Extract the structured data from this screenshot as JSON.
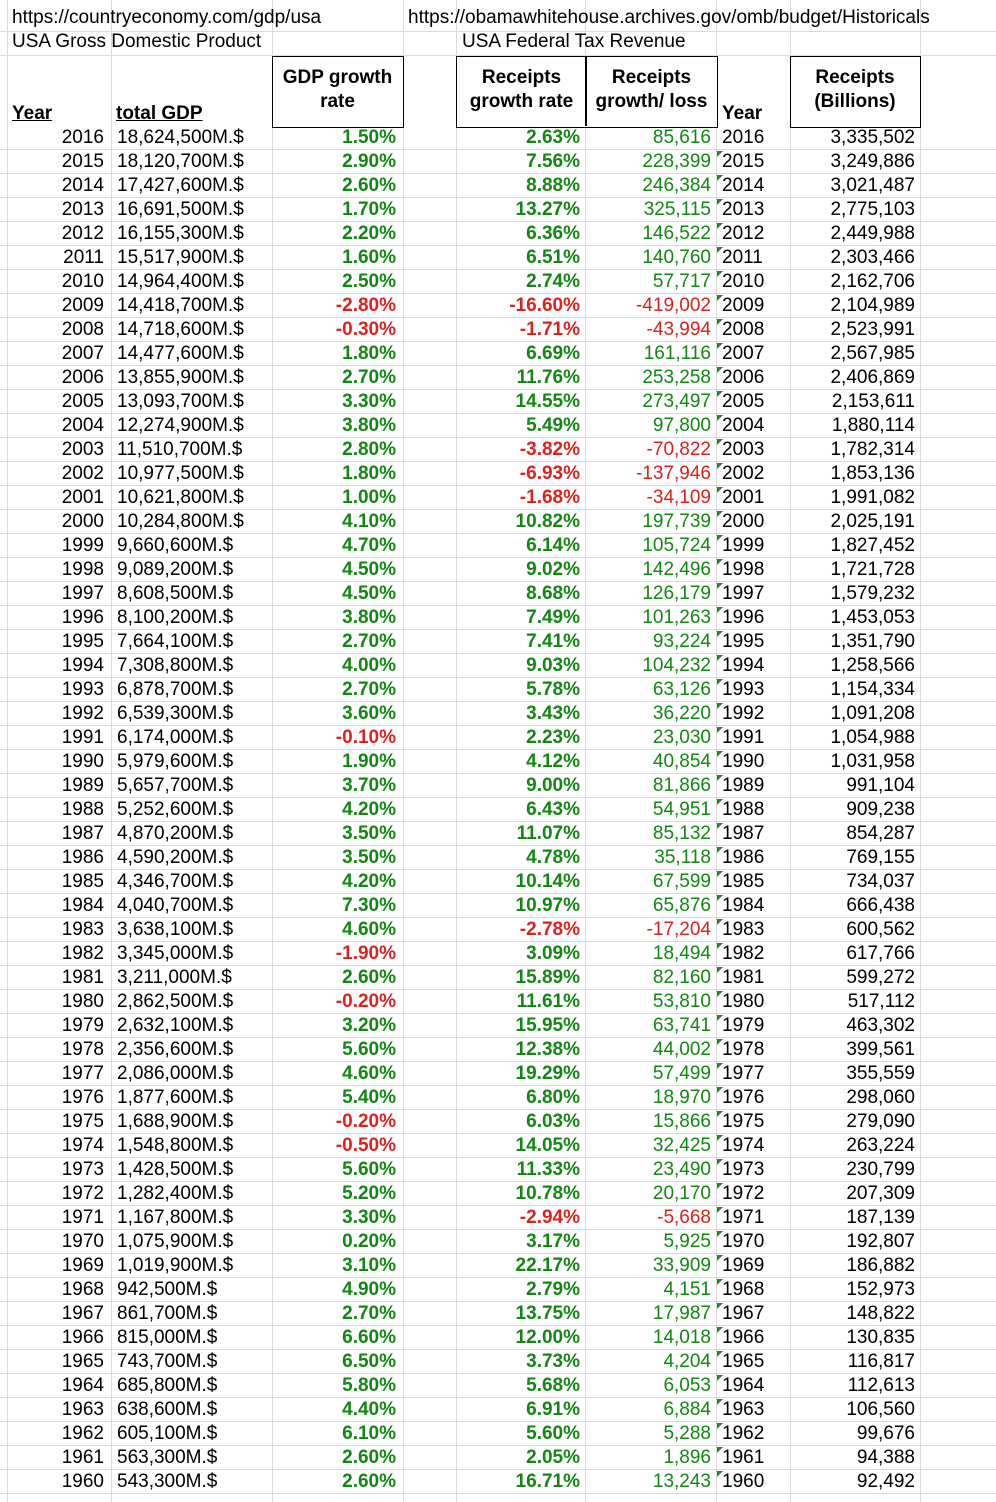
{
  "sources": {
    "gdp_url": "https://countryeconomy.com/gdp/usa",
    "gdp_title": "USA Gross Domestic Product",
    "tax_url": "https://obamawhitehouse.archives.gov/omb/budget/Historicals",
    "tax_title": "USA Federal Tax Revenue"
  },
  "headers": {
    "year": "Year",
    "total_gdp": "total GDP",
    "gdp_growth_1": "GDP growth",
    "gdp_growth_2": "rate",
    "receipts_growth_1": "Receipts",
    "receipts_growth_2": "growth rate",
    "receipts_gl_1": "Receipts",
    "receipts_gl_2": "growth/ loss",
    "year2": "Year",
    "receipts_1": "Receipts",
    "receipts_2": "(Billions)"
  },
  "colors": {
    "positive": "#118811",
    "negative": "#e0201a",
    "gridline": "#dadada",
    "flag": "#1f8a1f"
  },
  "rows": [
    {
      "year": "2016",
      "gdp": "18,624,500M.$",
      "gdp_growth": "1.50%",
      "receipts_growth": "2.63%",
      "receipts_change": "85,616",
      "year2": "2016",
      "receipts": "3,335,502",
      "gdp_neg": false,
      "rec_neg": false,
      "flag": false
    },
    {
      "year": "2015",
      "gdp": "18,120,700M.$",
      "gdp_growth": "2.90%",
      "receipts_growth": "7.56%",
      "receipts_change": "228,399",
      "year2": "2015",
      "receipts": "3,249,886",
      "gdp_neg": false,
      "rec_neg": false,
      "flag": true
    },
    {
      "year": "2014",
      "gdp": "17,427,600M.$",
      "gdp_growth": "2.60%",
      "receipts_growth": "8.88%",
      "receipts_change": "246,384",
      "year2": "2014",
      "receipts": "3,021,487",
      "gdp_neg": false,
      "rec_neg": false,
      "flag": true
    },
    {
      "year": "2013",
      "gdp": "16,691,500M.$",
      "gdp_growth": "1.70%",
      "receipts_growth": "13.27%",
      "receipts_change": "325,115",
      "year2": "2013",
      "receipts": "2,775,103",
      "gdp_neg": false,
      "rec_neg": false,
      "flag": true
    },
    {
      "year": "2012",
      "gdp": "16,155,300M.$",
      "gdp_growth": "2.20%",
      "receipts_growth": "6.36%",
      "receipts_change": "146,522",
      "year2": "2012",
      "receipts": "2,449,988",
      "gdp_neg": false,
      "rec_neg": false,
      "flag": true
    },
    {
      "year": "2011",
      "gdp": "15,517,900M.$",
      "gdp_growth": "1.60%",
      "receipts_growth": "6.51%",
      "receipts_change": "140,760",
      "year2": "2011",
      "receipts": "2,303,466",
      "gdp_neg": false,
      "rec_neg": false,
      "flag": true
    },
    {
      "year": "2010",
      "gdp": "14,964,400M.$",
      "gdp_growth": "2.50%",
      "receipts_growth": "2.74%",
      "receipts_change": "57,717",
      "year2": "2010",
      "receipts": "2,162,706",
      "gdp_neg": false,
      "rec_neg": false,
      "flag": true
    },
    {
      "year": "2009",
      "gdp": "14,418,700M.$",
      "gdp_growth": "-2.80%",
      "receipts_growth": "-16.60%",
      "receipts_change": "-419,002",
      "year2": "2009",
      "receipts": "2,104,989",
      "gdp_neg": true,
      "rec_neg": true,
      "flag": true
    },
    {
      "year": "2008",
      "gdp": "14,718,600M.$",
      "gdp_growth": "-0.30%",
      "receipts_growth": "-1.71%",
      "receipts_change": "-43,994",
      "year2": "2008",
      "receipts": "2,523,991",
      "gdp_neg": true,
      "rec_neg": true,
      "flag": true
    },
    {
      "year": "2007",
      "gdp": "14,477,600M.$",
      "gdp_growth": "1.80%",
      "receipts_growth": "6.69%",
      "receipts_change": "161,116",
      "year2": "2007",
      "receipts": "2,567,985",
      "gdp_neg": false,
      "rec_neg": false,
      "flag": true
    },
    {
      "year": "2006",
      "gdp": "13,855,900M.$",
      "gdp_growth": "2.70%",
      "receipts_growth": "11.76%",
      "receipts_change": "253,258",
      "year2": "2006",
      "receipts": "2,406,869",
      "gdp_neg": false,
      "rec_neg": false,
      "flag": true
    },
    {
      "year": "2005",
      "gdp": "13,093,700M.$",
      "gdp_growth": "3.30%",
      "receipts_growth": "14.55%",
      "receipts_change": "273,497",
      "year2": "2005",
      "receipts": "2,153,611",
      "gdp_neg": false,
      "rec_neg": false,
      "flag": true
    },
    {
      "year": "2004",
      "gdp": "12,274,900M.$",
      "gdp_growth": "3.80%",
      "receipts_growth": "5.49%",
      "receipts_change": "97,800",
      "year2": "2004",
      "receipts": "1,880,114",
      "gdp_neg": false,
      "rec_neg": false,
      "flag": true
    },
    {
      "year": "2003",
      "gdp": "11,510,700M.$",
      "gdp_growth": "2.80%",
      "receipts_growth": "-3.82%",
      "receipts_change": "-70,822",
      "year2": "2003",
      "receipts": "1,782,314",
      "gdp_neg": false,
      "rec_neg": true,
      "flag": true
    },
    {
      "year": "2002",
      "gdp": "10,977,500M.$",
      "gdp_growth": "1.80%",
      "receipts_growth": "-6.93%",
      "receipts_change": "-137,946",
      "year2": "2002",
      "receipts": "1,853,136",
      "gdp_neg": false,
      "rec_neg": true,
      "flag": true
    },
    {
      "year": "2001",
      "gdp": "10,621,800M.$",
      "gdp_growth": "1.00%",
      "receipts_growth": "-1.68%",
      "receipts_change": "-34,109",
      "year2": "2001",
      "receipts": "1,991,082",
      "gdp_neg": false,
      "rec_neg": true,
      "flag": true
    },
    {
      "year": "2000",
      "gdp": "10,284,800M.$",
      "gdp_growth": "4.10%",
      "receipts_growth": "10.82%",
      "receipts_change": "197,739",
      "year2": "2000",
      "receipts": "2,025,191",
      "gdp_neg": false,
      "rec_neg": false,
      "flag": true
    },
    {
      "year": "1999",
      "gdp": "9,660,600M.$",
      "gdp_growth": "4.70%",
      "receipts_growth": "6.14%",
      "receipts_change": "105,724",
      "year2": "1999",
      "receipts": "1,827,452",
      "gdp_neg": false,
      "rec_neg": false,
      "flag": true
    },
    {
      "year": "1998",
      "gdp": "9,089,200M.$",
      "gdp_growth": "4.50%",
      "receipts_growth": "9.02%",
      "receipts_change": "142,496",
      "year2": "1998",
      "receipts": "1,721,728",
      "gdp_neg": false,
      "rec_neg": false,
      "flag": true
    },
    {
      "year": "1997",
      "gdp": "8,608,500M.$",
      "gdp_growth": "4.50%",
      "receipts_growth": "8.68%",
      "receipts_change": "126,179",
      "year2": "1997",
      "receipts": "1,579,232",
      "gdp_neg": false,
      "rec_neg": false,
      "flag": true
    },
    {
      "year": "1996",
      "gdp": "8,100,200M.$",
      "gdp_growth": "3.80%",
      "receipts_growth": "7.49%",
      "receipts_change": "101,263",
      "year2": "1996",
      "receipts": "1,453,053",
      "gdp_neg": false,
      "rec_neg": false,
      "flag": true
    },
    {
      "year": "1995",
      "gdp": "7,664,100M.$",
      "gdp_growth": "2.70%",
      "receipts_growth": "7.41%",
      "receipts_change": "93,224",
      "year2": "1995",
      "receipts": "1,351,790",
      "gdp_neg": false,
      "rec_neg": false,
      "flag": true
    },
    {
      "year": "1994",
      "gdp": "7,308,800M.$",
      "gdp_growth": "4.00%",
      "receipts_growth": "9.03%",
      "receipts_change": "104,232",
      "year2": "1994",
      "receipts": "1,258,566",
      "gdp_neg": false,
      "rec_neg": false,
      "flag": true
    },
    {
      "year": "1993",
      "gdp": "6,878,700M.$",
      "gdp_growth": "2.70%",
      "receipts_growth": "5.78%",
      "receipts_change": "63,126",
      "year2": "1993",
      "receipts": "1,154,334",
      "gdp_neg": false,
      "rec_neg": false,
      "flag": true
    },
    {
      "year": "1992",
      "gdp": "6,539,300M.$",
      "gdp_growth": "3.60%",
      "receipts_growth": "3.43%",
      "receipts_change": "36,220",
      "year2": "1992",
      "receipts": "1,091,208",
      "gdp_neg": false,
      "rec_neg": false,
      "flag": true
    },
    {
      "year": "1991",
      "gdp": "6,174,000M.$",
      "gdp_growth": "-0.10%",
      "receipts_growth": "2.23%",
      "receipts_change": "23,030",
      "year2": "1991",
      "receipts": "1,054,988",
      "gdp_neg": true,
      "rec_neg": false,
      "flag": true
    },
    {
      "year": "1990",
      "gdp": "5,979,600M.$",
      "gdp_growth": "1.90%",
      "receipts_growth": "4.12%",
      "receipts_change": "40,854",
      "year2": "1990",
      "receipts": "1,031,958",
      "gdp_neg": false,
      "rec_neg": false,
      "flag": true
    },
    {
      "year": "1989",
      "gdp": "5,657,700M.$",
      "gdp_growth": "3.70%",
      "receipts_growth": "9.00%",
      "receipts_change": "81,866",
      "year2": "1989",
      "receipts": "991,104",
      "gdp_neg": false,
      "rec_neg": false,
      "flag": true
    },
    {
      "year": "1988",
      "gdp": "5,252,600M.$",
      "gdp_growth": "4.20%",
      "receipts_growth": "6.43%",
      "receipts_change": "54,951",
      "year2": "1988",
      "receipts": "909,238",
      "gdp_neg": false,
      "rec_neg": false,
      "flag": true
    },
    {
      "year": "1987",
      "gdp": "4,870,200M.$",
      "gdp_growth": "3.50%",
      "receipts_growth": "11.07%",
      "receipts_change": "85,132",
      "year2": "1987",
      "receipts": "854,287",
      "gdp_neg": false,
      "rec_neg": false,
      "flag": true
    },
    {
      "year": "1986",
      "gdp": "4,590,200M.$",
      "gdp_growth": "3.50%",
      "receipts_growth": "4.78%",
      "receipts_change": "35,118",
      "year2": "1986",
      "receipts": "769,155",
      "gdp_neg": false,
      "rec_neg": false,
      "flag": true
    },
    {
      "year": "1985",
      "gdp": "4,346,700M.$",
      "gdp_growth": "4.20%",
      "receipts_growth": "10.14%",
      "receipts_change": "67,599",
      "year2": "1985",
      "receipts": "734,037",
      "gdp_neg": false,
      "rec_neg": false,
      "flag": true
    },
    {
      "year": "1984",
      "gdp": "4,040,700M.$",
      "gdp_growth": "7.30%",
      "receipts_growth": "10.97%",
      "receipts_change": "65,876",
      "year2": "1984",
      "receipts": "666,438",
      "gdp_neg": false,
      "rec_neg": false,
      "flag": true
    },
    {
      "year": "1983",
      "gdp": "3,638,100M.$",
      "gdp_growth": "4.60%",
      "receipts_growth": "-2.78%",
      "receipts_change": "-17,204",
      "year2": "1983",
      "receipts": "600,562",
      "gdp_neg": false,
      "rec_neg": true,
      "flag": true
    },
    {
      "year": "1982",
      "gdp": "3,345,000M.$",
      "gdp_growth": "-1.90%",
      "receipts_growth": "3.09%",
      "receipts_change": "18,494",
      "year2": "1982",
      "receipts": "617,766",
      "gdp_neg": true,
      "rec_neg": false,
      "flag": true
    },
    {
      "year": "1981",
      "gdp": "3,211,000M.$",
      "gdp_growth": "2.60%",
      "receipts_growth": "15.89%",
      "receipts_change": "82,160",
      "year2": "1981",
      "receipts": "599,272",
      "gdp_neg": false,
      "rec_neg": false,
      "flag": true
    },
    {
      "year": "1980",
      "gdp": "2,862,500M.$",
      "gdp_growth": "-0.20%",
      "receipts_growth": "11.61%",
      "receipts_change": "53,810",
      "year2": "1980",
      "receipts": "517,112",
      "gdp_neg": true,
      "rec_neg": false,
      "flag": true
    },
    {
      "year": "1979",
      "gdp": "2,632,100M.$",
      "gdp_growth": "3.20%",
      "receipts_growth": "15.95%",
      "receipts_change": "63,741",
      "year2": "1979",
      "receipts": "463,302",
      "gdp_neg": false,
      "rec_neg": false,
      "flag": true
    },
    {
      "year": "1978",
      "gdp": "2,356,600M.$",
      "gdp_growth": "5.60%",
      "receipts_growth": "12.38%",
      "receipts_change": "44,002",
      "year2": "1978",
      "receipts": "399,561",
      "gdp_neg": false,
      "rec_neg": false,
      "flag": true
    },
    {
      "year": "1977",
      "gdp": "2,086,000M.$",
      "gdp_growth": "4.60%",
      "receipts_growth": "19.29%",
      "receipts_change": "57,499",
      "year2": "1977",
      "receipts": "355,559",
      "gdp_neg": false,
      "rec_neg": false,
      "flag": true
    },
    {
      "year": "1976",
      "gdp": "1,877,600M.$",
      "gdp_growth": "5.40%",
      "receipts_growth": "6.80%",
      "receipts_change": "18,970",
      "year2": "1976",
      "receipts": "298,060",
      "gdp_neg": false,
      "rec_neg": false,
      "flag": true
    },
    {
      "year": "1975",
      "gdp": "1,688,900M.$",
      "gdp_growth": "-0.20%",
      "receipts_growth": "6.03%",
      "receipts_change": "15,866",
      "year2": "1975",
      "receipts": "279,090",
      "gdp_neg": true,
      "rec_neg": false,
      "flag": true
    },
    {
      "year": "1974",
      "gdp": "1,548,800M.$",
      "gdp_growth": "-0.50%",
      "receipts_growth": "14.05%",
      "receipts_change": "32,425",
      "year2": "1974",
      "receipts": "263,224",
      "gdp_neg": true,
      "rec_neg": false,
      "flag": true
    },
    {
      "year": "1973",
      "gdp": "1,428,500M.$",
      "gdp_growth": "5.60%",
      "receipts_growth": "11.33%",
      "receipts_change": "23,490",
      "year2": "1973",
      "receipts": "230,799",
      "gdp_neg": false,
      "rec_neg": false,
      "flag": true
    },
    {
      "year": "1972",
      "gdp": "1,282,400M.$",
      "gdp_growth": "5.20%",
      "receipts_growth": "10.78%",
      "receipts_change": "20,170",
      "year2": "1972",
      "receipts": "207,309",
      "gdp_neg": false,
      "rec_neg": false,
      "flag": true
    },
    {
      "year": "1971",
      "gdp": "1,167,800M.$",
      "gdp_growth": "3.30%",
      "receipts_growth": "-2.94%",
      "receipts_change": "-5,668",
      "year2": "1971",
      "receipts": "187,139",
      "gdp_neg": false,
      "rec_neg": true,
      "flag": true
    },
    {
      "year": "1970",
      "gdp": "1,075,900M.$",
      "gdp_growth": "0.20%",
      "receipts_growth": "3.17%",
      "receipts_change": "5,925",
      "year2": "1970",
      "receipts": "192,807",
      "gdp_neg": false,
      "rec_neg": false,
      "flag": true
    },
    {
      "year": "1969",
      "gdp": "1,019,900M.$",
      "gdp_growth": "3.10%",
      "receipts_growth": "22.17%",
      "receipts_change": "33,909",
      "year2": "1969",
      "receipts": "186,882",
      "gdp_neg": false,
      "rec_neg": false,
      "flag": true
    },
    {
      "year": "1968",
      "gdp": "942,500M.$",
      "gdp_growth": "4.90%",
      "receipts_growth": "2.79%",
      "receipts_change": "4,151",
      "year2": "1968",
      "receipts": "152,973",
      "gdp_neg": false,
      "rec_neg": false,
      "flag": true
    },
    {
      "year": "1967",
      "gdp": "861,700M.$",
      "gdp_growth": "2.70%",
      "receipts_growth": "13.75%",
      "receipts_change": "17,987",
      "year2": "1967",
      "receipts": "148,822",
      "gdp_neg": false,
      "rec_neg": false,
      "flag": true
    },
    {
      "year": "1966",
      "gdp": "815,000M.$",
      "gdp_growth": "6.60%",
      "receipts_growth": "12.00%",
      "receipts_change": "14,018",
      "year2": "1966",
      "receipts": "130,835",
      "gdp_neg": false,
      "rec_neg": false,
      "flag": true
    },
    {
      "year": "1965",
      "gdp": "743,700M.$",
      "gdp_growth": "6.50%",
      "receipts_growth": "3.73%",
      "receipts_change": "4,204",
      "year2": "1965",
      "receipts": "116,817",
      "gdp_neg": false,
      "rec_neg": false,
      "flag": true
    },
    {
      "year": "1964",
      "gdp": "685,800M.$",
      "gdp_growth": "5.80%",
      "receipts_growth": "5.68%",
      "receipts_change": "6,053",
      "year2": "1964",
      "receipts": "112,613",
      "gdp_neg": false,
      "rec_neg": false,
      "flag": true
    },
    {
      "year": "1963",
      "gdp": "638,600M.$",
      "gdp_growth": "4.40%",
      "receipts_growth": "6.91%",
      "receipts_change": "6,884",
      "year2": "1963",
      "receipts": "106,560",
      "gdp_neg": false,
      "rec_neg": false,
      "flag": true
    },
    {
      "year": "1962",
      "gdp": "605,100M.$",
      "gdp_growth": "6.10%",
      "receipts_growth": "5.60%",
      "receipts_change": "5,288",
      "year2": "1962",
      "receipts": "99,676",
      "gdp_neg": false,
      "rec_neg": false,
      "flag": true
    },
    {
      "year": "1961",
      "gdp": "563,300M.$",
      "gdp_growth": "2.60%",
      "receipts_growth": "2.05%",
      "receipts_change": "1,896",
      "year2": "1961",
      "receipts": "94,388",
      "gdp_neg": false,
      "rec_neg": false,
      "flag": true
    },
    {
      "year": "1960",
      "gdp": "543,300M.$",
      "gdp_growth": "2.60%",
      "receipts_growth": "16.71%",
      "receipts_change": "13,243",
      "year2": "1960",
      "receipts": "92,492",
      "gdp_neg": false,
      "rec_neg": false,
      "flag": true
    }
  ]
}
